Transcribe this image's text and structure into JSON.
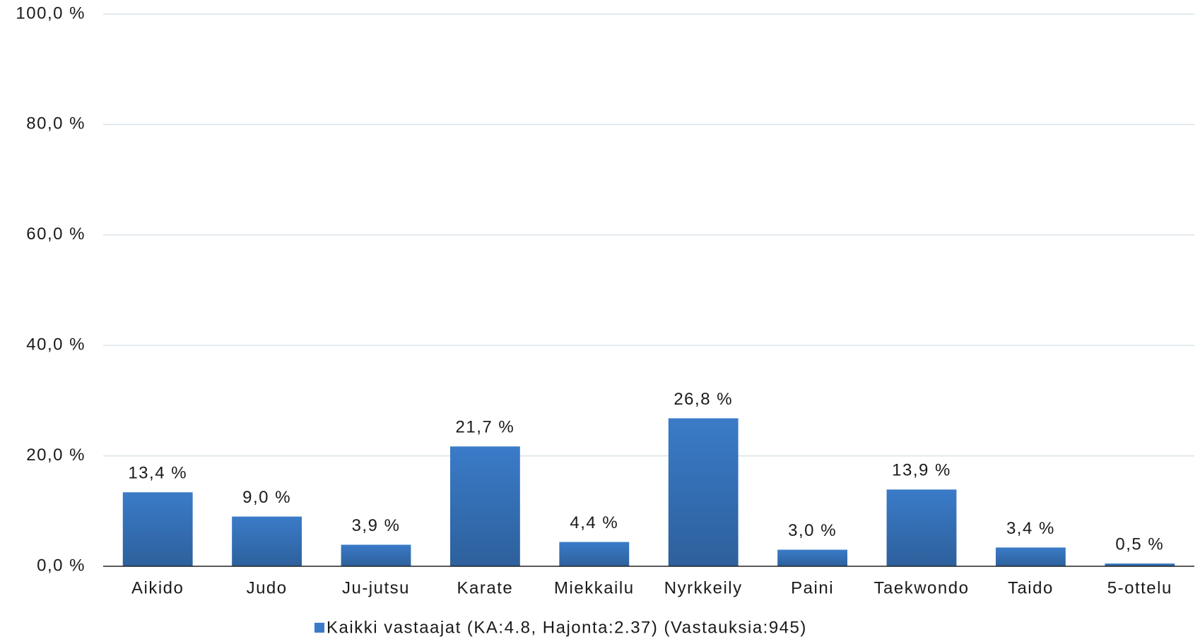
{
  "chart_data": {
    "type": "bar",
    "categories": [
      "Aikido",
      "Judo",
      "Ju-jutsu",
      "Karate",
      "Miekkailu",
      "Nyrkkeily",
      "Paini",
      "Taekwondo",
      "Taido",
      "5-ottelu"
    ],
    "series": [
      {
        "name": "Kaikki vastaajat (KA:4.8, Hajonta:2.37) (Vastauksia:945)",
        "color": "#3a7bc8",
        "values": [
          13.4,
          9.0,
          3.9,
          21.7,
          4.4,
          26.8,
          3.0,
          13.9,
          3.4,
          0.5
        ],
        "value_labels": [
          "13,4 %",
          "9,0 %",
          "3,9 %",
          "21,7 %",
          "4,4 %",
          "26,8 %",
          "3,0 %",
          "13,9 %",
          "3,4 %",
          "0,5 %"
        ]
      }
    ],
    "ylim": [
      0,
      100
    ],
    "yticks": [
      {
        "value": 0,
        "label": "0,0 %"
      },
      {
        "value": 20,
        "label": "20,0 %"
      },
      {
        "value": 40,
        "label": "40,0 %"
      },
      {
        "value": 60,
        "label": "60,0 %"
      },
      {
        "value": 80,
        "label": "80,0 %"
      },
      {
        "value": 100,
        "label": "100,0 %"
      }
    ],
    "grid": true
  }
}
